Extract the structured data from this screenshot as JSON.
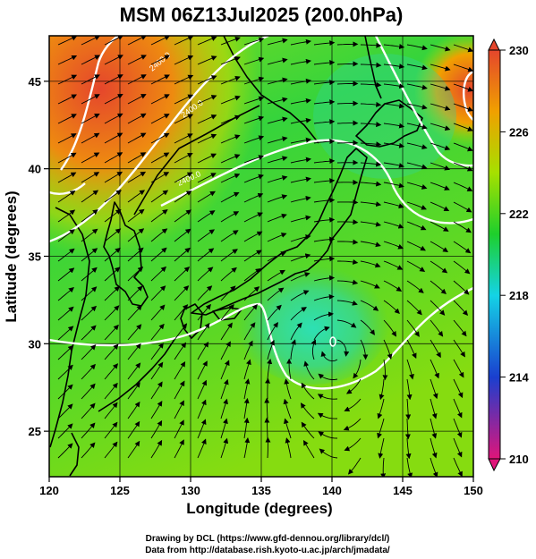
{
  "title": "MSM 06Z13Jul2025 (200.0hPa)",
  "x_axis": {
    "label": "Longitude (degrees)",
    "range": [
      120,
      150
    ],
    "ticks": [
      "120",
      "125",
      "130",
      "135",
      "140",
      "145",
      "150"
    ]
  },
  "y_axis": {
    "label": "Latitude  (degrees)",
    "range": [
      22.4,
      47.6
    ],
    "ticks": [
      "25",
      "30",
      "35",
      "40",
      "45"
    ]
  },
  "colorbar": {
    "range": [
      210,
      230
    ],
    "ticks": [
      "230",
      "226",
      "222",
      "218",
      "214",
      "210"
    ],
    "colors": [
      "#e0157a",
      "#1a3fcf",
      "#14d3e6",
      "#1ecf2c",
      "#a6e000",
      "#f0a000",
      "#e5462c"
    ]
  },
  "contour_labels": [
    "2400.0",
    "2400.0",
    "2400.0"
  ],
  "credits": {
    "line1": "Drawing by DCL (https://www.gfd-dennou.org/library/dcl/)",
    "line2": "Data from http://database.rish.kyoto-u.ac.jp/arch/jmadata/"
  }
}
